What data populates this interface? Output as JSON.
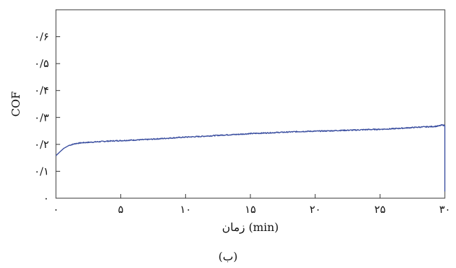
{
  "chart_data": {
    "type": "line",
    "title": "",
    "xlabel": "زمان (min)",
    "ylabel": "COF",
    "caption": "(ب)",
    "xlim": [
      0,
      30
    ],
    "ylim": [
      0,
      0.7
    ],
    "grid": false,
    "line_color": "#3b4fa0",
    "x_ticks": [
      {
        "value": 0,
        "label": "۰"
      },
      {
        "value": 5,
        "label": "۵"
      },
      {
        "value": 10,
        "label": "۱۰"
      },
      {
        "value": 15,
        "label": "۱۵"
      },
      {
        "value": 20,
        "label": "۲۰"
      },
      {
        "value": 25,
        "label": "۲۵"
      },
      {
        "value": 30,
        "label": "۳۰"
      }
    ],
    "y_ticks": [
      {
        "value": 0,
        "label": "۰"
      },
      {
        "value": 0.1,
        "label": "۰/۱"
      },
      {
        "value": 0.2,
        "label": "۰/۲"
      },
      {
        "value": 0.3,
        "label": "۰/۳"
      },
      {
        "value": 0.4,
        "label": "۰/۴"
      },
      {
        "value": 0.5,
        "label": "۰/۵"
      },
      {
        "value": 0.6,
        "label": "۰/۶"
      }
    ],
    "series": [
      {
        "x": [
          0,
          0.3,
          0.6,
          1.0,
          1.5,
          2,
          3,
          4,
          5,
          6,
          7,
          8,
          9,
          10,
          11,
          12,
          13,
          14,
          15,
          16,
          17,
          18,
          19,
          20,
          21,
          22,
          23,
          24,
          25,
          26,
          27,
          28,
          29,
          29.5,
          29.8,
          30,
          30
        ],
        "y": [
          0.158,
          0.172,
          0.185,
          0.196,
          0.203,
          0.206,
          0.209,
          0.212,
          0.214,
          0.216,
          0.218,
          0.221,
          0.224,
          0.227,
          0.229,
          0.232,
          0.235,
          0.237,
          0.24,
          0.242,
          0.244,
          0.246,
          0.248,
          0.249,
          0.25,
          0.252,
          0.253,
          0.255,
          0.256,
          0.258,
          0.261,
          0.264,
          0.266,
          0.268,
          0.272,
          0.27,
          0.025
        ]
      }
    ]
  }
}
